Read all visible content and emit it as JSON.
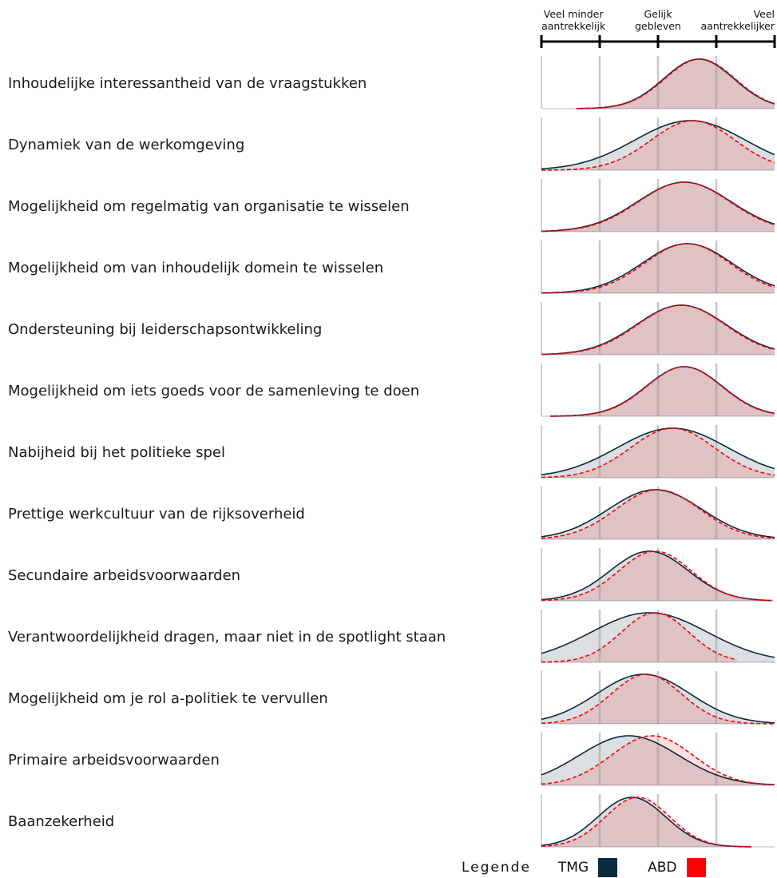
{
  "chart_data": {
    "type": "area",
    "scale": {
      "ticks": [
        0,
        1,
        2,
        3,
        4
      ],
      "labels": [
        {
          "lines": [
            "Veel minder",
            "aantrekkelijk"
          ],
          "at": 0.55,
          "anchor": "middle"
        },
        {
          "lines": [
            "Gelijk",
            "gebleven"
          ],
          "at": 2,
          "anchor": "middle"
        },
        {
          "lines": [
            "Veel",
            "aantrekkelijker"
          ],
          "at": 4,
          "anchor": "end"
        }
      ],
      "xlim": [
        0,
        4
      ]
    },
    "series": [
      {
        "name": "TMG",
        "color": "#0d2b3e",
        "style": "solid"
      },
      {
        "name": "ABD",
        "color": "#ff0000",
        "style": "dashed"
      }
    ],
    "rows": [
      {
        "label": "Inhoudelijke interessantheid van de vraagstukken",
        "TMG": {
          "mean": 2.7,
          "sd": 0.6,
          "x0": 0.6
        },
        "ABD": {
          "mean": 2.72,
          "sd": 0.6,
          "x0": 0.6
        }
      },
      {
        "label": "Dynamiek van de werkomgeving",
        "TMG": {
          "mean": 2.55,
          "sd": 0.95
        },
        "ABD": {
          "mean": 2.6,
          "sd": 0.72
        }
      },
      {
        "label": "Mogelijkheid om regelmatig van organisatie te wisselen",
        "TMG": {
          "mean": 2.45,
          "sd": 0.8
        },
        "ABD": {
          "mean": 2.45,
          "sd": 0.78
        }
      },
      {
        "label": "Mogelijkheid om van inhoudelijk domein te wisselen",
        "TMG": {
          "mean": 2.5,
          "sd": 0.77
        },
        "ABD": {
          "mean": 2.5,
          "sd": 0.73
        }
      },
      {
        "label": "Ondersteuning bij leiderschapsontwikkeling",
        "TMG": {
          "mean": 2.4,
          "sd": 0.77
        },
        "ABD": {
          "mean": 2.4,
          "sd": 0.75
        }
      },
      {
        "label": "Mogelijkheid om iets goeds voor de samenleving te doen",
        "TMG": {
          "mean": 2.45,
          "sd": 0.65,
          "x0": 0.15
        },
        "ABD": {
          "mean": 2.45,
          "sd": 0.64,
          "x0": 0.15
        }
      },
      {
        "label": "Nabijheid bij het politieke spel",
        "TMG": {
          "mean": 2.25,
          "sd": 0.95
        },
        "ABD": {
          "mean": 2.25,
          "sd": 0.72
        }
      },
      {
        "label": "Prettige werkcultuur van de rijksoverheid",
        "TMG": {
          "mean": 1.95,
          "sd": 0.8
        },
        "ABD": {
          "mean": 2.0,
          "sd": 0.72
        }
      },
      {
        "label": "Secundaire arbeidsvoorwaarden",
        "TMG": {
          "mean": 1.85,
          "sd": 0.67,
          "x1": 3.95
        },
        "ABD": {
          "mean": 1.95,
          "sd": 0.62,
          "x1": 3.95
        }
      },
      {
        "label": "Verantwoordelijkheid dragen, maar niet in de spotlight staan",
        "TMG": {
          "mean": 1.85,
          "sd": 1.0
        },
        "ABD": {
          "mean": 1.95,
          "sd": 0.58,
          "x1": 3.35
        }
      },
      {
        "label": "Mogelijkheid om je rol a-politiek te vervullen",
        "TMG": {
          "mean": 1.75,
          "sd": 0.8
        },
        "ABD": {
          "mean": 1.8,
          "sd": 0.6
        }
      },
      {
        "label": "Primaire arbeidsvoorwaarden",
        "TMG": {
          "mean": 1.5,
          "sd": 0.85
        },
        "ABD": {
          "mean": 1.9,
          "sd": 0.7
        }
      },
      {
        "label": "Baanzekerheid",
        "TMG": {
          "mean": 1.55,
          "sd": 0.58,
          "x1": 3.6
        },
        "ABD": {
          "mean": 1.65,
          "sd": 0.55,
          "x1": 3.6
        }
      }
    ]
  },
  "legend": {
    "title": "Legende",
    "items": [
      {
        "name": "TMG",
        "color": "#0d2b3e"
      },
      {
        "name": "ABD",
        "color": "#ff0000"
      }
    ]
  }
}
